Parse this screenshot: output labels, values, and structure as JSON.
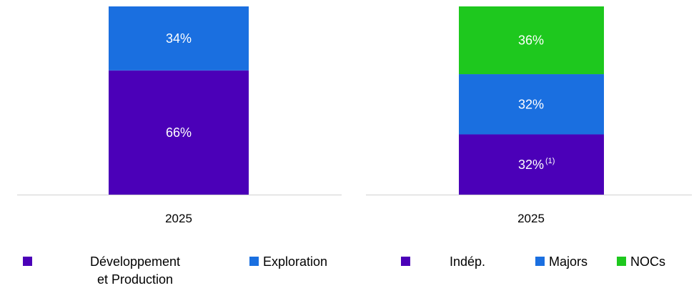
{
  "chart_data": [
    {
      "type": "bar",
      "stacked": true,
      "categories": [
        "2025"
      ],
      "unit": "%",
      "ylim": [
        0,
        100
      ],
      "series": [
        {
          "name": "Développement et Production",
          "values": [
            66
          ],
          "color": "#4b00b8"
        },
        {
          "name": "Exploration",
          "values": [
            34
          ],
          "color": "#1a6fe0"
        }
      ],
      "data_labels": [
        [
          "66%"
        ],
        [
          "34%"
        ]
      ],
      "legend_lines": [
        [
          "Développement",
          "et Production"
        ],
        [
          "Exploration"
        ]
      ],
      "legend": "bottom"
    },
    {
      "type": "bar",
      "stacked": true,
      "categories": [
        "2025"
      ],
      "unit": "%",
      "ylim": [
        0,
        100
      ],
      "series": [
        {
          "name": "Indép.",
          "values": [
            32
          ],
          "color": "#4b00b8"
        },
        {
          "name": "Majors",
          "values": [
            32
          ],
          "color": "#1a6fe0"
        },
        {
          "name": "NOCs",
          "values": [
            36
          ],
          "color": "#1ec81e"
        }
      ],
      "data_labels": [
        [
          "32%"
        ],
        [
          "32%"
        ],
        [
          "36%"
        ]
      ],
      "notes": [
        [
          "(1)"
        ],
        [
          ""
        ],
        [
          ""
        ]
      ],
      "legend_lines": [
        [
          "Indép."
        ],
        [
          "Majors"
        ],
        [
          "NOCs"
        ]
      ],
      "legend": "bottom"
    }
  ]
}
